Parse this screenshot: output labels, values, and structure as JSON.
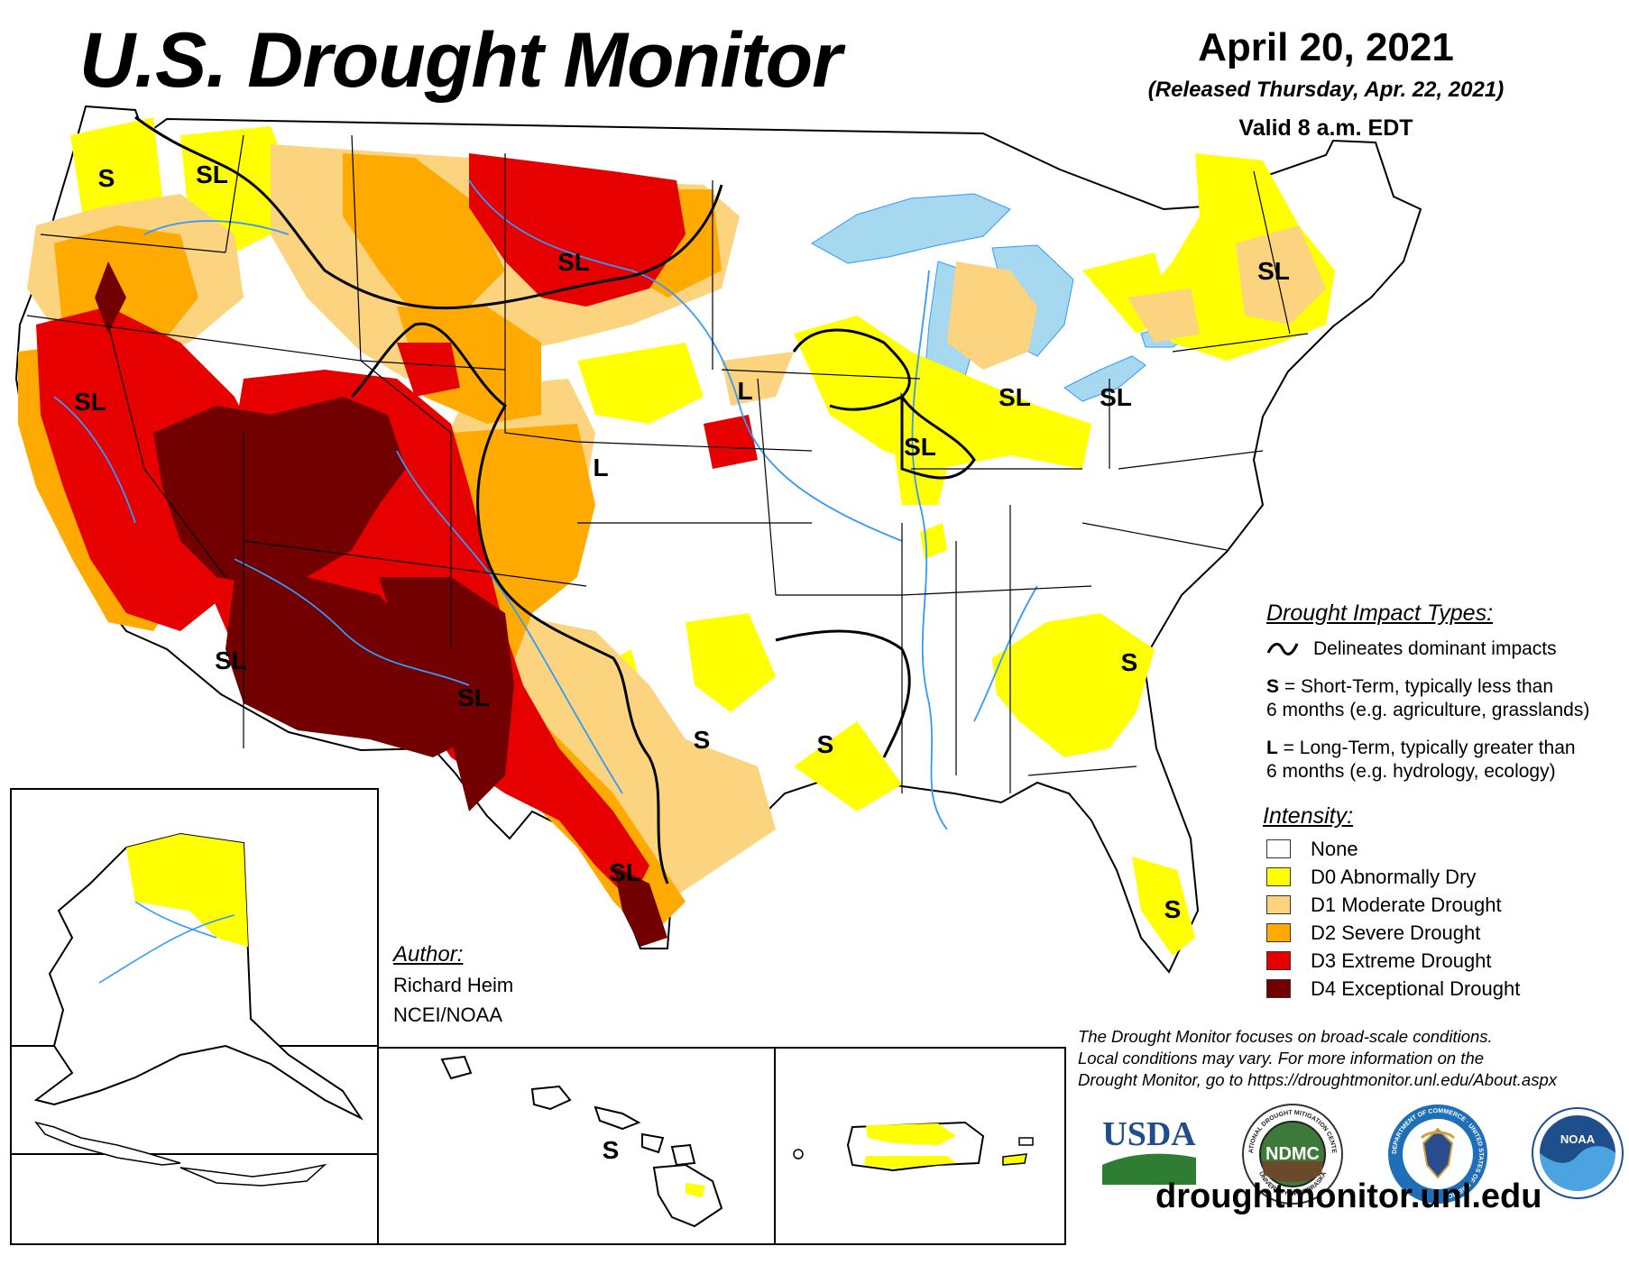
{
  "header": {
    "title": "U.S. Drought Monitor",
    "date": "April 20, 2021",
    "released": "(Released Thursday, Apr. 22, 2021)",
    "valid": "Valid 8 a.m. EDT"
  },
  "colors": {
    "none": "#ffffff",
    "d0": "#ffff00",
    "d1": "#fcd37f",
    "d2": "#ffaa00",
    "d3": "#e60000",
    "d4": "#730000",
    "water": "#a6d8f0",
    "river": "#3399ff"
  },
  "map_labels": [
    {
      "text": "S"
    },
    {
      "text": "SL"
    },
    {
      "text": "SL"
    },
    {
      "text": "SL"
    },
    {
      "text": "L"
    },
    {
      "text": "SL"
    },
    {
      "text": "SL"
    },
    {
      "text": "SL"
    },
    {
      "text": "SL"
    },
    {
      "text": "L"
    },
    {
      "text": "SL"
    },
    {
      "text": "SL"
    },
    {
      "text": "S"
    },
    {
      "text": "S"
    },
    {
      "text": "S"
    },
    {
      "text": "SL"
    },
    {
      "text": "S"
    },
    {
      "text": "S"
    },
    {
      "text": "S"
    }
  ],
  "legend": {
    "impact_heading": "Drought Impact Types:",
    "delineates": "Delineates dominant impacts",
    "s_key": "S",
    "s_line1": " = Short-Term, typically less than",
    "s_line2": "6 months (e.g. agriculture, grasslands)",
    "l_key": "L",
    "l_line1": " = Long-Term, typically greater than",
    "l_line2": "6 months (e.g. hydrology, ecology)",
    "intensity_heading": "Intensity:",
    "intensity_items": [
      {
        "label": "None",
        "color": "#ffffff"
      },
      {
        "label": "D0 Abnormally Dry",
        "color": "#ffff00"
      },
      {
        "label": "D1 Moderate Drought",
        "color": "#fcd37f"
      },
      {
        "label": "D2 Severe Drought",
        "color": "#ffaa00"
      },
      {
        "label": "D3 Extreme Drought",
        "color": "#e60000"
      },
      {
        "label": "D4 Exceptional Drought",
        "color": "#730000"
      }
    ]
  },
  "author": {
    "heading": "Author:",
    "name": "Richard Heim",
    "org": "NCEI/NOAA"
  },
  "footer": {
    "disclaimer_1": "The Drought Monitor focuses on broad-scale conditions.",
    "disclaimer_2": "Local conditions may vary. For more information on the",
    "disclaimer_3": "Drought Monitor, go to https://droughtmonitor.unl.edu/About.aspx",
    "url": "droughtmonitor.unl.edu"
  },
  "logos": {
    "usda": "USDA",
    "ndmc": "NDMC",
    "ndmc_ring_top": "NATIONAL DROUGHT MITIGATION CENTER",
    "ndmc_ring_bottom": "UNIVERSITY OF NEBRASKA",
    "doc_ring": "DEPARTMENT OF COMMERCE · UNITED STATES OF AMERICA",
    "noaa": "NOAA"
  }
}
